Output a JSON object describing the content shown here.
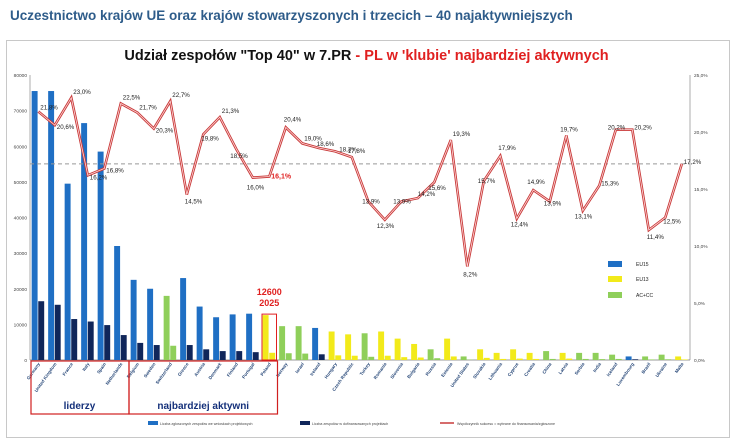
{
  "page": {
    "title": "Uczestnictwo krajów UE oraz krajów stowarzyszonych i trzecich – 40 najaktywniejszych"
  },
  "chart_data": {
    "type": "bar",
    "title": "Udział zespołów \"Top 40\"  w 7.PR",
    "subtitle": "PL w 'klubie' najbardziej aktywnych",
    "title_separator": "-",
    "xlabel": "",
    "ylabel": "",
    "ylim": [
      0,
      80000
    ],
    "y2lim": [
      0,
      25
    ],
    "y_ticks": [
      0,
      10000,
      20000,
      30000,
      40000,
      50000,
      60000,
      70000,
      80000
    ],
    "y2_ticks": [
      "0,0%",
      "5,0%",
      "10,0%",
      "15,0%",
      "20,0%",
      "25,0%"
    ],
    "grid": false,
    "categories": [
      "Germany",
      "United Kingdom",
      "France",
      "Italy",
      "Spain",
      "Netherlands",
      "Belgium",
      "Sweden",
      "Switzerland",
      "Greece",
      "Austria",
      "Denmark",
      "Finland",
      "Portugal",
      "Poland",
      "Norway",
      "Israel",
      "Ireland",
      "Hungary",
      "Czech Republic",
      "Turkey",
      "Romania",
      "Slovenia",
      "Bulgaria",
      "Russia",
      "Estonia",
      "United States",
      "Slovakia",
      "Lithuania",
      "Cyprus",
      "Croatia",
      "China",
      "Latvia",
      "Serbia",
      "India",
      "Iceland",
      "Luxembourg",
      "Brazil",
      "Ukraine",
      "Malta"
    ],
    "group_colors": {
      "EU15": "#1f6fc4",
      "EU13": "#f2ea1a",
      "AC+CC": "#8fcf5a"
    },
    "groups": [
      "EU15",
      "EU15",
      "EU15",
      "EU15",
      "EU15",
      "EU15",
      "EU15",
      "EU15",
      "AC+CC",
      "EU15",
      "EU15",
      "EU15",
      "EU15",
      "EU15",
      "EU13",
      "AC+CC",
      "AC+CC",
      "EU15",
      "EU13",
      "EU13",
      "AC+CC",
      "EU13",
      "EU13",
      "EU13",
      "AC+CC",
      "EU13",
      "AC+CC",
      "EU13",
      "EU13",
      "EU13",
      "EU13",
      "AC+CC",
      "EU13",
      "AC+CC",
      "AC+CC",
      "AC+CC",
      "EU15",
      "AC+CC",
      "AC+CC",
      "EU13"
    ],
    "series": [
      {
        "name": "Liczba zgłoszonych zespołów we wnioskach projektowych",
        "values": [
          75500,
          75500,
          49500,
          66500,
          58500,
          32000,
          22500,
          20000,
          18000,
          23000,
          15000,
          12000,
          12800,
          13000,
          12600,
          9500,
          9500,
          9000,
          8000,
          7200,
          7500,
          8000,
          6000,
          4500,
          3000,
          6000,
          1000,
          3000,
          2000,
          3000,
          2000,
          2500,
          2000,
          2000,
          2000,
          1500,
          1000,
          1000,
          1500,
          1000
        ]
      },
      {
        "name": "Liczba zespołów w dofinansowanych projektach",
        "values": [
          16500,
          15500,
          11500,
          10800,
          9800,
          7000,
          4800,
          4200,
          4000,
          4200,
          3000,
          2500,
          2500,
          2200,
          2025,
          1900,
          1800,
          1600,
          1300,
          1200,
          900,
          1200,
          800,
          700,
          500,
          1000,
          100,
          600,
          300,
          400,
          300,
          300,
          400,
          300,
          250,
          300,
          200,
          150,
          200,
          150
        ]
      },
      {
        "name": "Współczynnik sukcesu = wybrane do finansowania/zgłoszone",
        "unit": "%",
        "values": [
          21.8,
          20.6,
          23.0,
          16.2,
          16.8,
          22.5,
          21.7,
          20.3,
          22.7,
          14.5,
          19.8,
          21.3,
          18.5,
          16.0,
          16.1,
          20.4,
          19.0,
          18.6,
          18.3,
          17.8,
          13.9,
          12.3,
          13.9,
          14.2,
          15.6,
          19.3,
          8.2,
          15.7,
          17.9,
          12.4,
          14.9,
          13.9,
          19.7,
          13.1,
          15.3,
          20.2,
          20.2,
          11.4,
          12.5,
          17.2
        ]
      }
    ],
    "data_labels": [
      "21,8%",
      "20,6%",
      "23,0%",
      "16,2%",
      "16,8%",
      "22,5%",
      "21,7%",
      "20,3%",
      "22,7%",
      "14,5%",
      "19,8%",
      "21,3%",
      "18,5%",
      "16,0%",
      "16,1%",
      "20,4%",
      "19,0%",
      "18,6%",
      "18,3%",
      "17,8%",
      "13,9%",
      "12,3%",
      "13,9%",
      "14,2%",
      "15,6%",
      "19,3%",
      "8,2%",
      "15,7%",
      "17,9%",
      "12,4%",
      "14,9%",
      "13,9%",
      "19,7%",
      "13,1%",
      "15,3%",
      "20,2%",
      "20,2%",
      "11,4%",
      "12,5%",
      "17,2%"
    ],
    "highlight": {
      "country": "Poland",
      "labels": [
        "12600",
        "2025"
      ],
      "rate_label": "16,1%"
    },
    "reference_line": 17.2,
    "legend": {
      "placement": "right",
      "entries": [
        "EU15",
        "EU13",
        "AC+CC"
      ]
    },
    "bottom_legend": [
      "Liczba zgłoszonych zespołów we wnioskach projektowych",
      "Liczba zespołów w dofinansowanych projektach",
      "Współczynnik sukcesu = wybrane do finansowania/zgłoszone"
    ],
    "bracket_labels": [
      "liderzy",
      "najbardziej aktywni"
    ]
  }
}
